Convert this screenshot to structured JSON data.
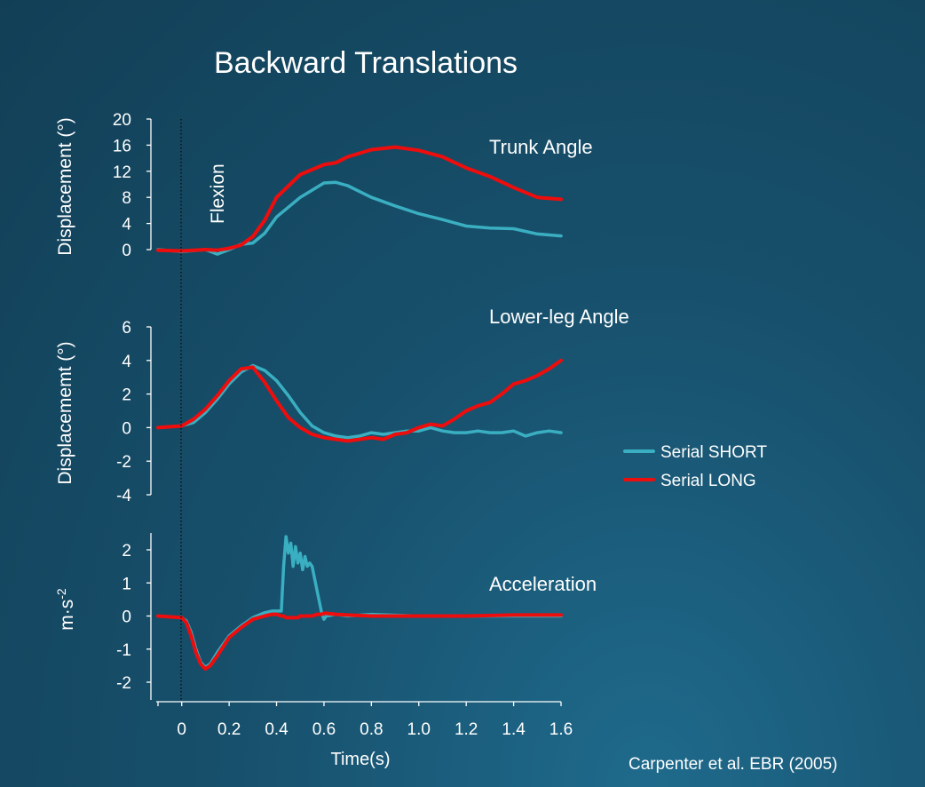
{
  "title": "Backward Translations",
  "citation": "Carpenter et al. EBR (2005)",
  "flexion_label": "Flexion",
  "colors": {
    "short": "#3aafc1",
    "long": "#ee0d0d"
  },
  "chart_data": [
    {
      "type": "line",
      "title": "Trunk Angle",
      "ylabel": "Displacement (°)",
      "ylim": [
        0,
        20
      ],
      "yticks": [
        0,
        4,
        8,
        12,
        16,
        20
      ],
      "xlim": [
        -0.1,
        1.6
      ],
      "xticks": [
        0,
        0.2,
        0.4,
        0.6,
        0.8,
        1.0,
        1.2,
        1.4,
        1.6
      ],
      "x": [
        -0.1,
        0.0,
        0.1,
        0.15,
        0.2,
        0.25,
        0.3,
        0.35,
        0.4,
        0.5,
        0.6,
        0.65,
        0.7,
        0.8,
        0.9,
        1.0,
        1.1,
        1.2,
        1.3,
        1.4,
        1.5,
        1.6
      ],
      "series": [
        {
          "name": "Serial SHORT",
          "color": "#3aafc1",
          "values": [
            0.0,
            -0.3,
            0.0,
            -0.7,
            0.0,
            0.8,
            1.0,
            2.5,
            5.0,
            8.0,
            10.2,
            10.3,
            9.8,
            8.0,
            6.7,
            5.5,
            4.6,
            3.6,
            3.3,
            3.2,
            2.4,
            2.1
          ]
        },
        {
          "name": "Serial LONG",
          "color": "#ee0d0d",
          "values": [
            -0.1,
            -0.2,
            0.0,
            -0.1,
            0.2,
            0.7,
            2.0,
            4.5,
            8.0,
            11.5,
            13.0,
            13.3,
            14.2,
            15.3,
            15.7,
            15.2,
            14.2,
            12.5,
            11.2,
            9.5,
            8.0,
            7.7
          ]
        }
      ]
    },
    {
      "type": "line",
      "title": "Lower-leg Angle",
      "ylabel": "Displacememt (°)",
      "ylim": [
        -4,
        6
      ],
      "yticks": [
        -4,
        -2,
        0,
        2,
        4,
        6
      ],
      "xlim": [
        -0.1,
        1.6
      ],
      "xticks": [
        0,
        0.2,
        0.4,
        0.6,
        0.8,
        1.0,
        1.2,
        1.4,
        1.6
      ],
      "x": [
        -0.1,
        0.0,
        0.05,
        0.1,
        0.15,
        0.2,
        0.25,
        0.3,
        0.35,
        0.4,
        0.45,
        0.5,
        0.55,
        0.6,
        0.65,
        0.7,
        0.75,
        0.8,
        0.85,
        0.9,
        0.95,
        1.0,
        1.05,
        1.1,
        1.15,
        1.2,
        1.25,
        1.3,
        1.35,
        1.4,
        1.45,
        1.5,
        1.55,
        1.6
      ],
      "series": [
        {
          "name": "Serial SHORT",
          "color": "#3aafc1",
          "values": [
            0.0,
            0.1,
            0.3,
            0.9,
            1.7,
            2.6,
            3.3,
            3.7,
            3.4,
            2.8,
            1.9,
            0.9,
            0.1,
            -0.3,
            -0.5,
            -0.6,
            -0.5,
            -0.3,
            -0.4,
            -0.3,
            -0.2,
            -0.2,
            0.0,
            -0.2,
            -0.3,
            -0.3,
            -0.2,
            -0.3,
            -0.3,
            -0.2,
            -0.5,
            -0.3,
            -0.2,
            -0.3
          ]
        },
        {
          "name": "Serial LONG",
          "color": "#ee0d0d",
          "values": [
            0.0,
            0.1,
            0.5,
            1.1,
            1.9,
            2.8,
            3.5,
            3.6,
            2.7,
            1.6,
            0.6,
            0.0,
            -0.4,
            -0.6,
            -0.7,
            -0.8,
            -0.7,
            -0.6,
            -0.7,
            -0.4,
            -0.3,
            0.0,
            0.2,
            0.1,
            0.5,
            1.0,
            1.3,
            1.5,
            2.0,
            2.6,
            2.8,
            3.1,
            3.5,
            4.0
          ]
        }
      ]
    },
    {
      "type": "line",
      "title": "Acceleration",
      "ylabel": "m·s-2",
      "ylim": [
        -2.5,
        2.5
      ],
      "yticks": [
        -2,
        -1,
        0,
        1,
        2
      ],
      "xlim": [
        -0.1,
        1.6
      ],
      "xticks": [
        0,
        0.2,
        0.4,
        0.6,
        0.8,
        1.0,
        1.2,
        1.4,
        1.6
      ],
      "xlabel": "Time(s)",
      "x": [
        -0.1,
        0.0,
        0.02,
        0.04,
        0.06,
        0.08,
        0.1,
        0.12,
        0.15,
        0.2,
        0.25,
        0.3,
        0.35,
        0.38,
        0.4,
        0.42,
        0.43,
        0.44,
        0.45,
        0.46,
        0.47,
        0.48,
        0.49,
        0.5,
        0.51,
        0.52,
        0.53,
        0.54,
        0.55,
        0.57,
        0.59,
        0.6,
        0.61,
        0.65,
        0.7,
        0.8,
        1.0,
        1.2,
        1.4,
        1.6
      ],
      "series": [
        {
          "name": "Serial SHORT",
          "color": "#3aafc1",
          "values": [
            0.0,
            -0.05,
            -0.15,
            -0.5,
            -1.0,
            -1.4,
            -1.55,
            -1.45,
            -1.1,
            -0.6,
            -0.3,
            -0.05,
            0.1,
            0.15,
            0.15,
            0.15,
            1.5,
            2.4,
            1.9,
            2.2,
            1.5,
            2.1,
            1.6,
            1.9,
            1.4,
            1.8,
            1.5,
            1.6,
            1.5,
            0.8,
            0.1,
            -0.1,
            0.0,
            0.05,
            0.0,
            0.05,
            0.0,
            0.0,
            0.0,
            0.0
          ]
        },
        {
          "name": "Serial LONG",
          "color": "#ee0d0d",
          "values": [
            0.0,
            -0.05,
            -0.2,
            -0.6,
            -1.1,
            -1.45,
            -1.6,
            -1.5,
            -1.2,
            -0.65,
            -0.35,
            -0.1,
            0.0,
            0.05,
            0.05,
            0.0,
            0.0,
            -0.05,
            -0.05,
            -0.05,
            -0.05,
            -0.05,
            -0.05,
            0.0,
            0.0,
            0.0,
            0.0,
            0.0,
            0.0,
            0.05,
            0.05,
            0.08,
            0.08,
            0.05,
            0.03,
            0.0,
            0.0,
            0.0,
            0.03,
            0.03
          ]
        }
      ]
    }
  ],
  "legend": [
    {
      "label": "Serial SHORT",
      "color": "#3aafc1"
    },
    {
      "label": "Serial LONG",
      "color": "#ee0d0d"
    }
  ]
}
